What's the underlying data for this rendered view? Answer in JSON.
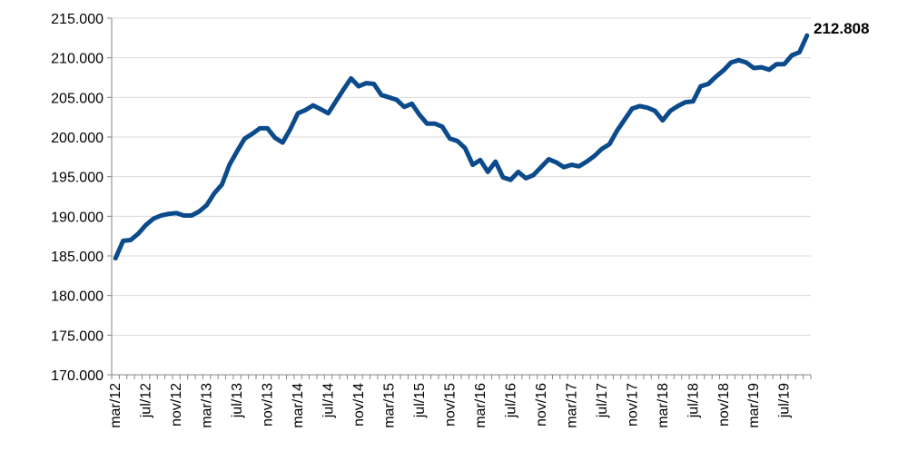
{
  "chart_data": {
    "type": "line",
    "title": "",
    "xlabel": "",
    "ylabel": "",
    "ylim": [
      170000,
      215000
    ],
    "y_ticks": [
      170000,
      175000,
      180000,
      185000,
      190000,
      195000,
      200000,
      205000,
      210000,
      215000
    ],
    "y_tick_labels": [
      "170.000",
      "175.000",
      "180.000",
      "185.000",
      "190.000",
      "195.000",
      "200.000",
      "205.000",
      "210.000",
      "215.000"
    ],
    "x_tick_labels": [
      "mar/12",
      "jul/12",
      "nov/12",
      "mar/13",
      "jul/13",
      "nov/13",
      "mar/14",
      "jul/14",
      "nov/14",
      "mar/15",
      "jul/15",
      "nov/15",
      "mar/16",
      "jul/16",
      "nov/16",
      "mar/17",
      "jul/17",
      "nov/17",
      "mar/18",
      "jul/18",
      "nov/18",
      "mar/19",
      "jul/19"
    ],
    "grid": "horizontal",
    "legend": "none",
    "line_color": "#0b4a8b",
    "end_label": "212.808",
    "series": [
      {
        "x": [
          "mar/12",
          "apr/12",
          "may/12",
          "jun/12",
          "jul/12",
          "aug/12",
          "sep/12",
          "oct/12",
          "nov/12",
          "dec/12",
          "jan/13",
          "feb/13",
          "mar/13",
          "apr/13",
          "may/13",
          "jun/13",
          "jul/13",
          "aug/13",
          "sep/13",
          "oct/13",
          "nov/13",
          "dec/13",
          "jan/14",
          "feb/14",
          "mar/14",
          "apr/14",
          "may/14",
          "jun/14",
          "jul/14",
          "aug/14",
          "sep/14",
          "oct/14",
          "nov/14",
          "dec/14",
          "jan/15",
          "feb/15",
          "mar/15",
          "apr/15",
          "may/15",
          "jun/15",
          "jul/15",
          "aug/15",
          "sep/15",
          "oct/15",
          "nov/15",
          "dec/15",
          "jan/16",
          "feb/16",
          "mar/16",
          "apr/16",
          "may/16",
          "jun/16",
          "jul/16",
          "aug/16",
          "sep/16",
          "oct/16",
          "nov/16",
          "dec/16",
          "jan/17",
          "feb/17",
          "mar/17",
          "apr/17",
          "may/17",
          "jun/17",
          "jul/17",
          "aug/17",
          "sep/17",
          "oct/17",
          "nov/17",
          "dec/17",
          "jan/18",
          "feb/18",
          "mar/18",
          "apr/18",
          "may/18",
          "jun/18",
          "jul/18",
          "aug/18",
          "sep/18",
          "oct/18",
          "nov/18",
          "dec/18",
          "jan/19",
          "feb/19",
          "mar/19",
          "apr/19",
          "may/19",
          "jun/19",
          "jul/19",
          "aug/19",
          "sep/19",
          "oct/19"
        ],
        "values": [
          184700,
          186900,
          187000,
          187800,
          188900,
          189700,
          190100,
          190300,
          190400,
          190100,
          190100,
          190600,
          191400,
          192900,
          194000,
          196500,
          198200,
          199800,
          200400,
          201100,
          201100,
          199900,
          199300,
          201000,
          203000,
          203400,
          204000,
          203500,
          203000,
          204500,
          206000,
          207400,
          206400,
          206800,
          206700,
          205300,
          205000,
          204700,
          203800,
          204200,
          202800,
          201700,
          201700,
          201300,
          199800,
          199500,
          198600,
          196500,
          197100,
          195600,
          196900,
          194900,
          194600,
          195600,
          194800,
          195200,
          196200,
          197200,
          196800,
          196200,
          196500,
          196300,
          196900,
          197600,
          198500,
          199100,
          200800,
          202200,
          203600,
          203900,
          203700,
          203300,
          202100,
          203300,
          203900,
          204400,
          204500,
          206400,
          206700,
          207600,
          208400,
          209400,
          209700,
          209400,
          208700,
          208800,
          208500,
          209200,
          209200,
          210300,
          210700,
          212808
        ]
      }
    ]
  }
}
